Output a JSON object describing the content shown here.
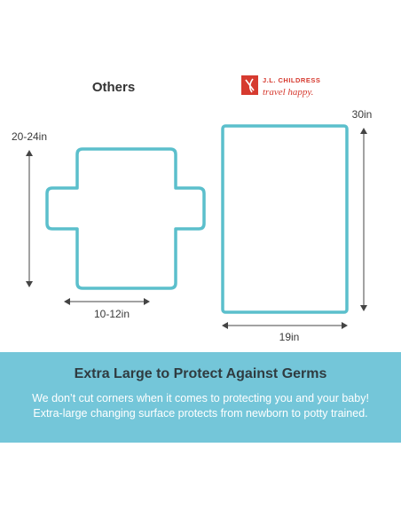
{
  "others_label": "Others",
  "brand": {
    "name": "J.L. CHILDRESS",
    "tagline": "travel happy."
  },
  "others_dimensions": {
    "height": "20-24in",
    "width": "10-12in"
  },
  "childress_dimensions": {
    "height": "30in",
    "width": "19in"
  },
  "banner": {
    "title": "Extra Large to Protect Against Germs",
    "lines": [
      "We don’t cut corners when it comes to protecting you and your baby!",
      "Extra-large changing surface protects from newborn to potty trained."
    ]
  }
}
